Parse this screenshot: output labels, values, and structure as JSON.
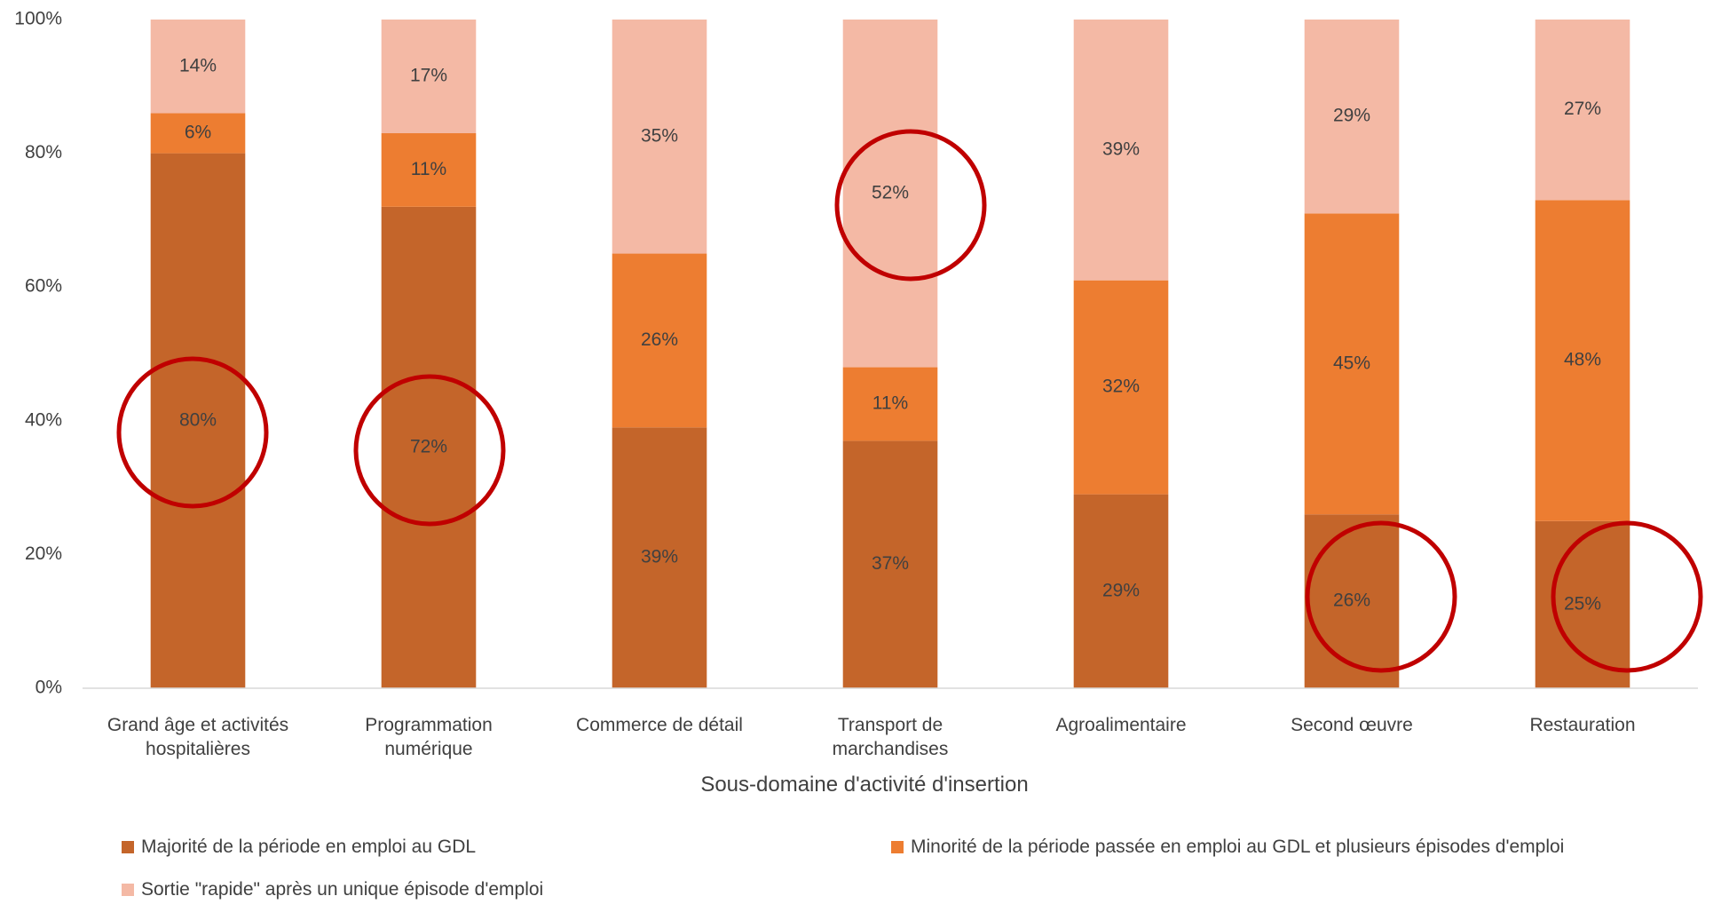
{
  "chart_data": {
    "type": "stacked_bar",
    "xlabel": "Sous-domaine d'activité d'insertion",
    "categories": [
      "Grand âge et activités hospitalières",
      "Programmation numérique",
      "Commerce de détail",
      "Transport de marchandises",
      "Agroalimentaire",
      "Second œuvre",
      "Restauration"
    ],
    "series": [
      {
        "name": "Majorité de la période en emploi au GDL",
        "color": "#c4652a",
        "values": [
          80,
          72,
          39,
          37,
          29,
          26,
          25
        ],
        "value_labels": [
          "80%",
          "72%",
          "39%",
          "37%",
          "29%",
          "26%",
          "25%"
        ]
      },
      {
        "name": "Minorité de la période passée en emploi au GDL et plusieurs épisodes d'emploi",
        "color": "#ed7d31",
        "values": [
          6,
          11,
          26,
          11,
          32,
          45,
          48
        ],
        "value_labels": [
          "6%",
          "11%",
          "26%",
          "11%",
          "32%",
          "45%",
          "48%"
        ]
      },
      {
        "name": "Sortie \"rapide\" après un unique épisode d'emploi",
        "color": "#f4b9a5",
        "values": [
          14,
          17,
          35,
          52,
          39,
          29,
          27
        ],
        "value_labels": [
          "14%",
          "17%",
          "35%",
          "52%",
          "39%",
          "29%",
          "27%"
        ]
      }
    ],
    "ylim": [
      0,
      100
    ],
    "yticks": [
      {
        "value": 0,
        "label": "0%"
      },
      {
        "value": 20,
        "label": "20%"
      },
      {
        "value": 40,
        "label": "40%"
      },
      {
        "value": 60,
        "label": "60%"
      },
      {
        "value": 80,
        "label": "80%"
      },
      {
        "value": 100,
        "label": "100%"
      }
    ],
    "grid": false
  }
}
